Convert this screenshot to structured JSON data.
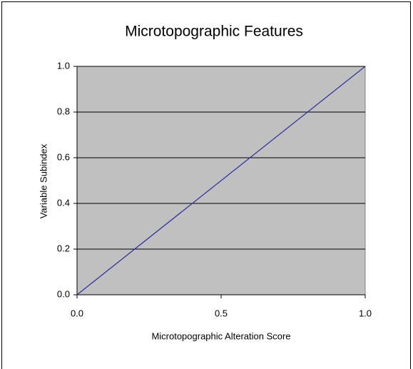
{
  "chart_data": {
    "type": "line",
    "title": "Microtopographic Features",
    "x_label": "Microtopographic Alteration Score",
    "y_label": "Variable Subindex",
    "x": [
      0,
      1
    ],
    "series": [
      {
        "name": "Variable Subindex",
        "color": "#2b2b9e",
        "values": [
          0,
          1
        ]
      }
    ],
    "xlim": [
      0,
      1
    ],
    "xticks": [
      {
        "value": 0,
        "label": "0.0"
      },
      0.5,
      {
        "value": 1,
        "label": "1.0"
      }
    ],
    "ylim": [
      0,
      1
    ],
    "yticks": [
      {
        "value": 0,
        "label": "0.0"
      },
      0.2,
      0.4,
      0.6,
      0.8,
      {
        "value": 1,
        "label": "1.0"
      }
    ],
    "grid": true,
    "plot_background": "#c0c0c0"
  }
}
